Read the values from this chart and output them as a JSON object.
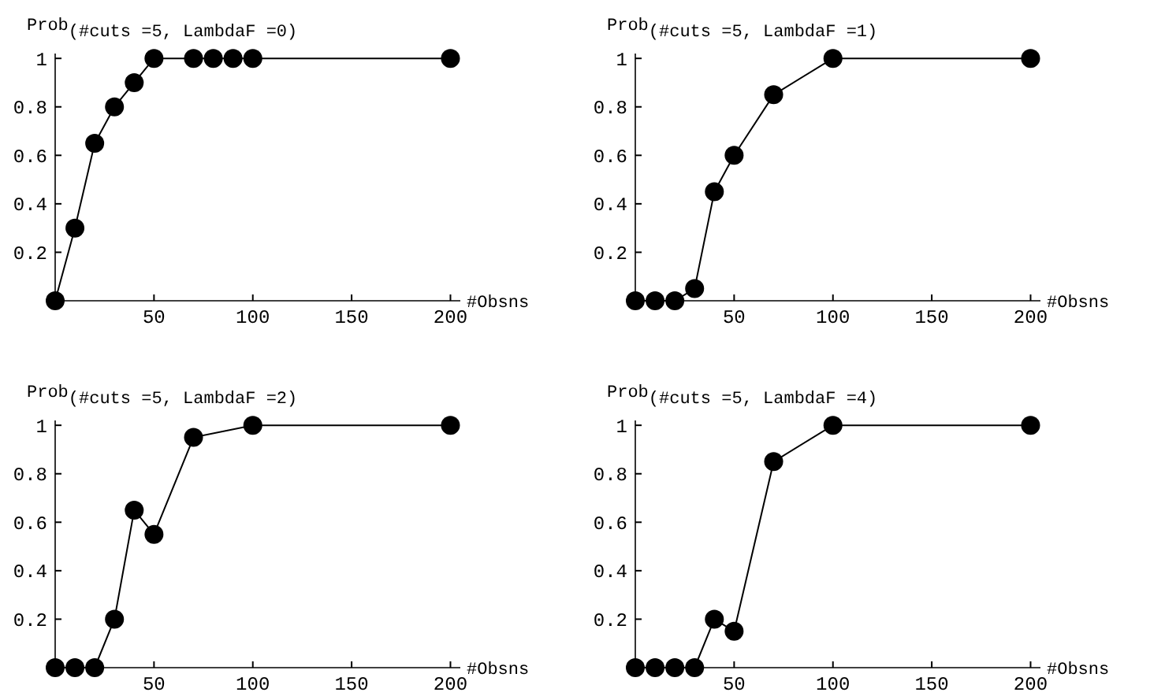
{
  "chart_data": [
    {
      "type": "line",
      "ylabel": "Prob$_{(#cuts =5, LambdaF =0)}$",
      "xlabel": "#Obsns",
      "marker": "circle",
      "line_style": "solid",
      "grid": false,
      "x": [
        0,
        10,
        20,
        30,
        40,
        50,
        70,
        80,
        90,
        100,
        200
      ],
      "series": [
        {
          "color": "#000000",
          "values": [
            0,
            0.3,
            0.65,
            0.8,
            0.9,
            1,
            1,
            1,
            1,
            1,
            1
          ]
        }
      ],
      "xlim": [
        0,
        205
      ],
      "ylim": [
        0,
        1.02
      ],
      "xticks": [
        50,
        100,
        150,
        200
      ],
      "yticks": [
        0.2,
        0.4,
        0.6,
        0.8,
        1
      ]
    },
    {
      "type": "line",
      "ylabel": "Prob$_{(#cuts =5, LambdaF =1)}$",
      "xlabel": "#Obsns",
      "marker": "circle",
      "line_style": "solid",
      "grid": false,
      "x": [
        0,
        10,
        20,
        30,
        40,
        50,
        70,
        100,
        200
      ],
      "series": [
        {
          "color": "#000000",
          "values": [
            0,
            0,
            0,
            0.05,
            0.45,
            0.6,
            0.85,
            1,
            1
          ]
        }
      ],
      "xlim": [
        0,
        205
      ],
      "ylim": [
        0,
        1.02
      ],
      "xticks": [
        50,
        100,
        150,
        200
      ],
      "yticks": [
        0.2,
        0.4,
        0.6,
        0.8,
        1
      ]
    },
    {
      "type": "line",
      "ylabel": "Prob$_{(#cuts =5, LambdaF =2)}$",
      "xlabel": "#Obsns",
      "marker": "circle",
      "line_style": "solid",
      "grid": false,
      "x": [
        0,
        10,
        20,
        30,
        40,
        50,
        70,
        100,
        200
      ],
      "series": [
        {
          "color": "#000000",
          "values": [
            0,
            0,
            0,
            0.2,
            0.65,
            0.55,
            0.95,
            1,
            1
          ]
        }
      ],
      "xlim": [
        0,
        205
      ],
      "ylim": [
        0,
        1.02
      ],
      "xticks": [
        50,
        100,
        150,
        200
      ],
      "yticks": [
        0.2,
        0.4,
        0.6,
        0.8,
        1
      ]
    },
    {
      "type": "line",
      "ylabel": "Prob$_{(#cuts =5, LambdaF =4)}$",
      "xlabel": "#Obsns",
      "marker": "circle",
      "line_style": "solid",
      "grid": false,
      "x": [
        0,
        10,
        20,
        30,
        40,
        50,
        70,
        100,
        200
      ],
      "series": [
        {
          "color": "#000000",
          "values": [
            0,
            0,
            0,
            0,
            0.2,
            0.15,
            0.85,
            1,
            1
          ]
        }
      ],
      "xlim": [
        0,
        205
      ],
      "ylim": [
        0,
        1.02
      ],
      "xticks": [
        50,
        100,
        150,
        200
      ],
      "yticks": [
        0.2,
        0.4,
        0.6,
        0.8,
        1
      ]
    }
  ]
}
